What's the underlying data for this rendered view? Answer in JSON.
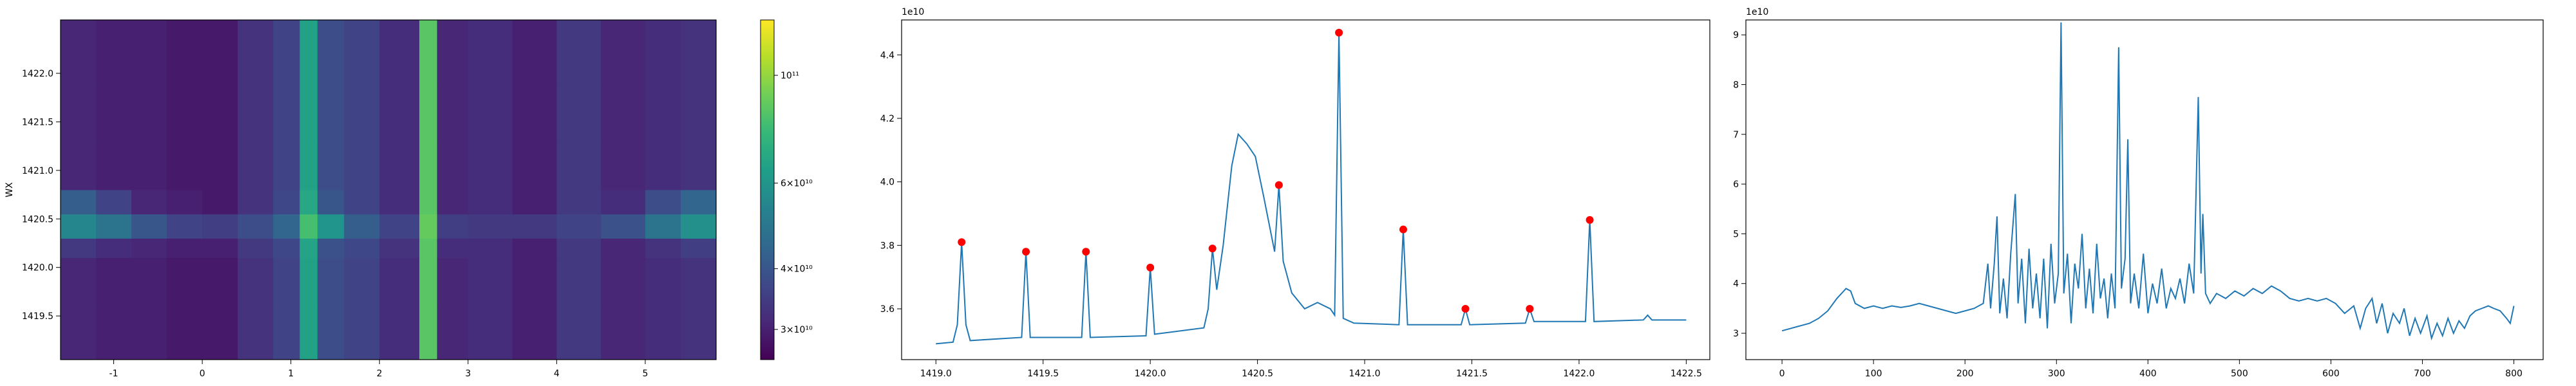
{
  "chart_data": [
    {
      "type": "heatmap",
      "ylabel": "WX",
      "xlim": [
        -1.6,
        5.8
      ],
      "ylim": [
        1419.05,
        1422.55
      ],
      "xticks": [
        -1,
        0,
        1,
        2,
        3,
        4,
        5
      ],
      "yticks": [
        1419.5,
        1420.0,
        1420.5,
        1421.0,
        1421.5,
        1422.0
      ],
      "ytick_labels": [
        "1419.5",
        "1420.0",
        "1420.5",
        "1421.0",
        "1421.5",
        "1422.0"
      ],
      "xbins": [
        -1.6,
        -1.2,
        -0.8,
        -0.4,
        0,
        0.4,
        0.8,
        1.1,
        1.3,
        1.6,
        2.0,
        2.45,
        2.65,
        3.0,
        3.5,
        4.0,
        4.5,
        5.0,
        5.4,
        5.8
      ],
      "ybins": [
        1419.05,
        1419.6,
        1420.1,
        1420.3,
        1420.55,
        1420.8,
        1421.3,
        1421.9,
        1422.55
      ],
      "z": [
        [
          31000000000.0,
          30000000000.0,
          30000000000.0,
          29000000000.0,
          29000000000.0,
          33000000000.0,
          36000000000.0,
          65000000000.0,
          38000000000.0,
          36000000000.0,
          32000000000.0,
          85000000000.0,
          31000000000.0,
          32000000000.0,
          30000000000.0,
          34000000000.0,
          31000000000.0,
          32000000000.0,
          33000000000.0
        ],
        [
          31000000000.0,
          30000000000.0,
          30000000000.0,
          29000000000.0,
          29000000000.0,
          33000000000.0,
          36000000000.0,
          65000000000.0,
          38000000000.0,
          36000000000.0,
          32000000000.0,
          85000000000.0,
          31000000000.0,
          32000000000.0,
          30000000000.0,
          34000000000.0,
          31000000000.0,
          32000000000.0,
          33000000000.0
        ],
        [
          34000000000.0,
          32000000000.0,
          31000000000.0,
          30000000000.0,
          30000000000.0,
          34000000000.0,
          37000000000.0,
          66000000000.0,
          39000000000.0,
          37000000000.0,
          33000000000.0,
          85000000000.0,
          32000000000.0,
          32000000000.0,
          30000000000.0,
          34000000000.0,
          31000000000.0,
          33000000000.0,
          35000000000.0
        ],
        [
          55000000000.0,
          48000000000.0,
          40000000000.0,
          36000000000.0,
          35000000000.0,
          38000000000.0,
          44000000000.0,
          80000000000.0,
          60000000000.0,
          42000000000.0,
          36000000000.0,
          88000000000.0,
          35000000000.0,
          34000000000.0,
          34000000000.0,
          36000000000.0,
          39000000000.0,
          48000000000.0,
          58000000000.0
        ],
        [
          42000000000.0,
          36000000000.0,
          31000000000.0,
          30000000000.0,
          29000000000.0,
          33000000000.0,
          37000000000.0,
          68000000000.0,
          40000000000.0,
          36000000000.0,
          32000000000.0,
          85000000000.0,
          31000000000.0,
          32000000000.0,
          30000000000.0,
          34000000000.0,
          32000000000.0,
          38000000000.0,
          44000000000.0
        ],
        [
          31000000000.0,
          30000000000.0,
          30000000000.0,
          29000000000.0,
          29000000000.0,
          33000000000.0,
          36000000000.0,
          65000000000.0,
          38000000000.0,
          36000000000.0,
          32000000000.0,
          85000000000.0,
          31000000000.0,
          32000000000.0,
          30000000000.0,
          34000000000.0,
          31000000000.0,
          32000000000.0,
          33000000000.0
        ],
        [
          31000000000.0,
          30000000000.0,
          30000000000.0,
          29000000000.0,
          29000000000.0,
          33000000000.0,
          36000000000.0,
          65000000000.0,
          38000000000.0,
          36000000000.0,
          32000000000.0,
          85000000000.0,
          31000000000.0,
          32000000000.0,
          30000000000.0,
          34000000000.0,
          31000000000.0,
          32000000000.0,
          33000000000.0
        ],
        [
          31000000000.0,
          30000000000.0,
          30000000000.0,
          29000000000.0,
          29000000000.0,
          33000000000.0,
          36000000000.0,
          65000000000.0,
          38000000000.0,
          36000000000.0,
          32000000000.0,
          85000000000.0,
          31000000000.0,
          32000000000.0,
          30000000000.0,
          34000000000.0,
          31000000000.0,
          32000000000.0,
          33000000000.0
        ]
      ],
      "colormap": "viridis",
      "color_scale": "log",
      "clim": [
        26000000000.0,
        130000000000.0
      ],
      "cticks": [
        {
          "value": 30000000000.0,
          "label": "3×10¹⁰"
        },
        {
          "value": 40000000000.0,
          "label": "4×10¹⁰"
        },
        {
          "value": 60000000000.0,
          "label": "6×10¹⁰"
        },
        {
          "value": 100000000000.0,
          "label": "10¹¹"
        }
      ]
    },
    {
      "type": "line",
      "y_offset_label": "1e10",
      "xlim": [
        1418.84,
        1422.61
      ],
      "ylim": [
        3.44,
        4.51
      ],
      "xticks": [
        1419.0,
        1419.5,
        1420.0,
        1420.5,
        1421.0,
        1421.5,
        1422.0,
        1422.5
      ],
      "xtick_labels": [
        "1419.0",
        "1419.5",
        "1420.0",
        "1420.5",
        "1421.0",
        "1421.5",
        "1422.0",
        "1422.5"
      ],
      "yticks": [
        3.6,
        3.8,
        4.0,
        4.2,
        4.4
      ],
      "ytick_labels": [
        "3.6",
        "3.8",
        "4.0",
        "4.2",
        "4.4"
      ],
      "series": [
        {
          "type": "line",
          "color": "#1f77b4",
          "x": [
            1419.0,
            1419.08,
            1419.1,
            1419.12,
            1419.14,
            1419.16,
            1419.4,
            1419.42,
            1419.44,
            1419.68,
            1419.7,
            1419.72,
            1419.98,
            1420.0,
            1420.02,
            1420.25,
            1420.27,
            1420.29,
            1420.31,
            1420.34,
            1420.38,
            1420.41,
            1420.45,
            1420.49,
            1420.53,
            1420.58,
            1420.6,
            1420.62,
            1420.66,
            1420.72,
            1420.78,
            1420.84,
            1420.86,
            1420.88,
            1420.9,
            1420.95,
            1421.16,
            1421.18,
            1421.2,
            1421.45,
            1421.47,
            1421.49,
            1421.75,
            1421.77,
            1421.79,
            1422.03,
            1422.05,
            1422.07,
            1422.3,
            1422.32,
            1422.34,
            1422.5
          ],
          "values": [
            3.49,
            3.495,
            3.55,
            3.81,
            3.55,
            3.5,
            3.51,
            3.78,
            3.51,
            3.51,
            3.78,
            3.51,
            3.515,
            3.73,
            3.52,
            3.54,
            3.6,
            3.79,
            3.66,
            3.8,
            4.05,
            4.15,
            4.12,
            4.08,
            3.95,
            3.78,
            3.99,
            3.75,
            3.65,
            3.6,
            3.62,
            3.6,
            3.58,
            4.47,
            3.57,
            3.555,
            3.55,
            3.85,
            3.55,
            3.55,
            3.6,
            3.55,
            3.555,
            3.6,
            3.56,
            3.56,
            3.88,
            3.56,
            3.565,
            3.58,
            3.565,
            3.565
          ]
        },
        {
          "type": "scatter",
          "color": "#ff0000",
          "x": [
            1419.12,
            1419.42,
            1419.7,
            1420.0,
            1420.29,
            1420.6,
            1420.88,
            1421.18,
            1421.47,
            1421.77,
            1422.05
          ],
          "values": [
            3.81,
            3.78,
            3.78,
            3.73,
            3.79,
            3.99,
            4.47,
            3.85,
            3.6,
            3.6,
            3.88
          ]
        }
      ]
    },
    {
      "type": "line",
      "y_offset_label": "1e10",
      "xlim": [
        -39.5,
        832
      ],
      "ylim": [
        2.47,
        9.3
      ],
      "xticks": [
        0,
        100,
        200,
        300,
        400,
        500,
        600,
        700,
        800
      ],
      "yticks": [
        3,
        4,
        5,
        6,
        7,
        8,
        9
      ],
      "series": [
        {
          "type": "line",
          "color": "#1f77b4",
          "x": [
            0,
            10,
            20,
            30,
            40,
            50,
            60,
            70,
            75,
            80,
            90,
            100,
            110,
            120,
            130,
            140,
            150,
            160,
            170,
            180,
            190,
            200,
            210,
            220,
            225,
            228,
            232,
            235,
            238,
            242,
            246,
            250,
            255,
            258,
            262,
            266,
            270,
            274,
            278,
            282,
            286,
            290,
            294,
            298,
            302,
            305,
            308,
            312,
            316,
            320,
            324,
            328,
            332,
            336,
            340,
            344,
            348,
            352,
            356,
            360,
            364,
            368,
            371,
            375,
            378,
            381,
            385,
            390,
            395,
            400,
            405,
            410,
            415,
            420,
            425,
            430,
            435,
            440,
            445,
            450,
            455,
            458,
            460,
            463,
            468,
            475,
            485,
            495,
            505,
            515,
            525,
            535,
            545,
            555,
            565,
            575,
            585,
            595,
            605,
            615,
            625,
            632,
            638,
            645,
            650,
            656,
            662,
            668,
            675,
            680,
            686,
            692,
            698,
            705,
            710,
            716,
            722,
            728,
            734,
            740,
            746,
            752,
            758,
            765,
            772,
            778,
            785,
            792,
            796,
            800
          ],
          "values": [
            3.05,
            3.1,
            3.15,
            3.2,
            3.3,
            3.45,
            3.7,
            3.9,
            3.85,
            3.6,
            3.5,
            3.55,
            3.5,
            3.55,
            3.52,
            3.55,
            3.6,
            3.55,
            3.5,
            3.45,
            3.4,
            3.45,
            3.5,
            3.6,
            4.4,
            3.5,
            4.4,
            5.35,
            3.4,
            4.1,
            3.3,
            4.6,
            5.8,
            3.6,
            4.5,
            3.2,
            4.7,
            3.5,
            4.2,
            3.3,
            4.5,
            3.1,
            4.8,
            3.6,
            4.2,
            9.25,
            3.8,
            4.6,
            3.2,
            4.4,
            3.9,
            5.0,
            3.5,
            4.3,
            3.4,
            4.8,
            3.7,
            4.1,
            3.3,
            4.2,
            3.5,
            8.75,
            3.9,
            4.5,
            6.9,
            3.6,
            4.2,
            3.5,
            4.6,
            3.4,
            4.0,
            3.6,
            4.3,
            3.5,
            3.9,
            3.7,
            4.1,
            3.6,
            4.4,
            3.8,
            7.75,
            4.2,
            5.4,
            3.8,
            3.6,
            3.8,
            3.7,
            3.85,
            3.75,
            3.9,
            3.8,
            3.95,
            3.85,
            3.7,
            3.65,
            3.7,
            3.65,
            3.7,
            3.6,
            3.4,
            3.55,
            3.1,
            3.5,
            3.7,
            3.2,
            3.6,
            3.0,
            3.4,
            3.2,
            3.5,
            2.95,
            3.3,
            3.0,
            3.35,
            2.9,
            3.2,
            2.95,
            3.3,
            3.0,
            3.25,
            3.1,
            3.35,
            3.45,
            3.5,
            3.55,
            3.5,
            3.45,
            3.3,
            3.2,
            3.55
          ]
        }
      ]
    }
  ]
}
